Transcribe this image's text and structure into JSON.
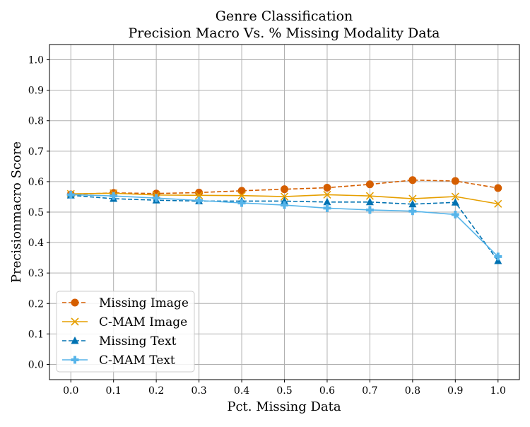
{
  "chart_data": {
    "type": "line",
    "title": "Genre Classification",
    "subtitle": "Precision Macro Vs. % Missing Modality Data",
    "xlabel": "Pct. Missing Data",
    "ylabel": "Precisionmacro Score",
    "x": [
      0.0,
      0.1,
      0.2,
      0.3,
      0.4,
      0.5,
      0.6,
      0.7,
      0.8,
      0.9,
      1.0
    ],
    "xtick_labels": [
      "0.0",
      "0.1",
      "0.2",
      "0.3",
      "0.4",
      "0.5",
      "0.6",
      "0.7",
      "0.8",
      "0.9",
      "1.0"
    ],
    "ytick_labels": [
      "0.0",
      "0.1",
      "0.2",
      "0.3",
      "0.4",
      "0.5",
      "0.6",
      "0.7",
      "0.8",
      "0.9",
      "1.0"
    ],
    "xlim": [
      -0.05,
      1.05
    ],
    "ylim": [
      -0.05,
      1.05
    ],
    "grid": true,
    "legend_position": "lower-left",
    "series": [
      {
        "name": "Missing Image",
        "color": "#d55e00",
        "linestyle": "dashed",
        "marker": "circle",
        "values": [
          0.558,
          0.563,
          0.561,
          0.564,
          0.57,
          0.575,
          0.58,
          0.591,
          0.605,
          0.602,
          0.579
        ]
      },
      {
        "name": "C-MAM Image",
        "color": "#e69f00",
        "linestyle": "solid",
        "marker": "x",
        "values": [
          0.56,
          0.562,
          0.556,
          0.555,
          0.554,
          0.551,
          0.557,
          0.553,
          0.544,
          0.551,
          0.527
        ]
      },
      {
        "name": "Missing Text",
        "color": "#0072b2",
        "linestyle": "dashed",
        "marker": "triangle",
        "values": [
          0.555,
          0.544,
          0.539,
          0.536,
          0.536,
          0.536,
          0.533,
          0.533,
          0.526,
          0.532,
          0.34
        ]
      },
      {
        "name": "C-MAM Text",
        "color": "#56b4e9",
        "linestyle": "solid",
        "marker": "plus",
        "values": [
          0.557,
          0.553,
          0.546,
          0.538,
          0.53,
          0.523,
          0.513,
          0.507,
          0.503,
          0.492,
          0.354
        ]
      }
    ]
  }
}
